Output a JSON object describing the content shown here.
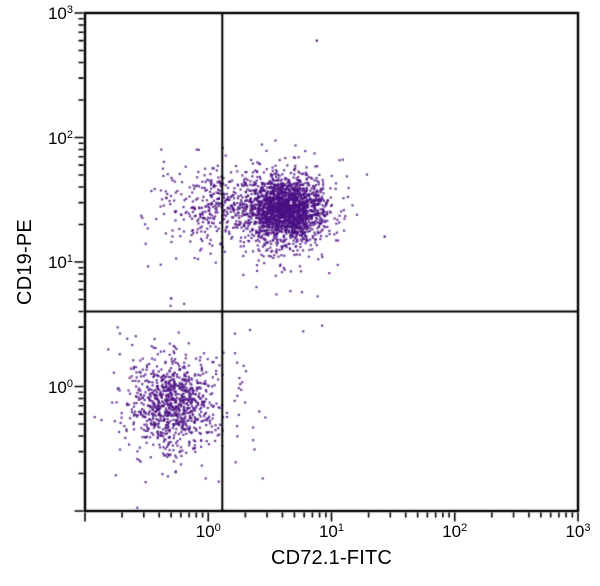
{
  "figure": {
    "background": "#ffffff",
    "axis_color": "#000000"
  },
  "chart_data": {
    "type": "scatter",
    "subtype": "flow-cytometry-dot-plot",
    "title": "",
    "xlabel": "CD72.1-FITC",
    "ylabel": "CD19-PE",
    "xscale": "log",
    "yscale": "log",
    "xlim": [
      0.1,
      1000
    ],
    "ylim": [
      0.1,
      1000
    ],
    "grid": false,
    "legend": null,
    "tick_base": "10",
    "x_tick_exponents": [
      0,
      1,
      2,
      3
    ],
    "y_tick_exponents": [
      0,
      1,
      2,
      3
    ],
    "point_color": "#4b1085",
    "point_alpha": 0.8,
    "gate_color": "#000000",
    "quadrant_gates": {
      "x": 1.3,
      "y": 4.0
    },
    "seed": 42,
    "clusters": [
      {
        "name": "cd19pos-cd72pos-core",
        "n": 1700,
        "mean_log10": [
          0.63,
          1.42
        ],
        "sd_log10": [
          0.15,
          0.12
        ]
      },
      {
        "name": "cd19pos-cd72pos-halo",
        "n": 500,
        "mean_log10": [
          0.55,
          1.43
        ],
        "sd_log10": [
          0.25,
          0.2
        ]
      },
      {
        "name": "cd19pos-left-tail",
        "n": 300,
        "mean_log10": [
          0.0,
          1.45
        ],
        "sd_log10": [
          0.22,
          0.17
        ]
      },
      {
        "name": "double-negative-core",
        "n": 650,
        "mean_log10": [
          -0.29,
          -0.14
        ],
        "sd_log10": [
          0.15,
          0.17
        ]
      },
      {
        "name": "double-negative-halo",
        "n": 280,
        "mean_log10": [
          -0.28,
          -0.16
        ],
        "sd_log10": [
          0.25,
          0.28
        ]
      },
      {
        "name": "below-gate-sparse",
        "n": 20,
        "mean_log10": [
          0.68,
          0.88
        ],
        "sd_log10": [
          0.18,
          0.22
        ]
      },
      {
        "name": "lower-right-sparse",
        "n": 18,
        "mean_log10": [
          0.28,
          -0.2
        ],
        "sd_log10": [
          0.18,
          0.28
        ]
      }
    ],
    "outlier_points": [
      [
        7.6,
        600
      ],
      [
        27,
        16
      ],
      [
        0.5,
        5.1
      ]
    ]
  }
}
